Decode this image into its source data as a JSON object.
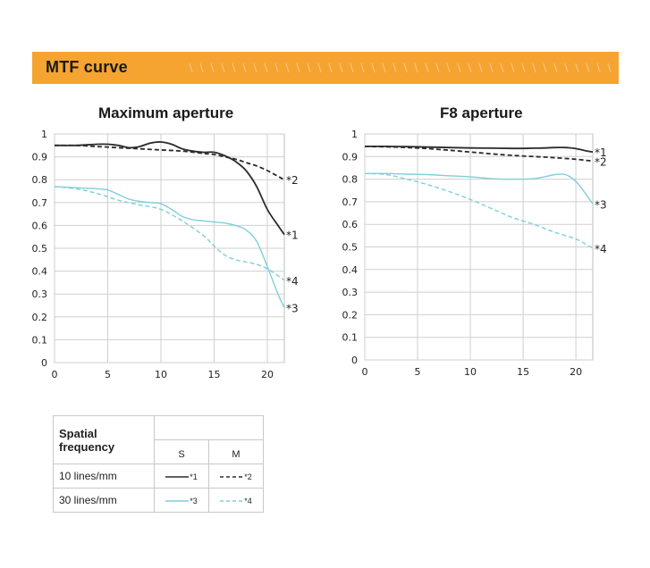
{
  "banner": {
    "title": "MTF curve"
  },
  "colors": {
    "banner": "#f5a431",
    "sagittal_dark": "#2b2b2b",
    "cyan": "#7fcfd8",
    "grid": "#cfcfcf"
  },
  "chart_data": [
    {
      "type": "line",
      "title": "Maximum aperture",
      "xlabel": "",
      "ylabel": "",
      "xlim": [
        0,
        21.6
      ],
      "ylim": [
        0,
        1
      ],
      "xticks": [
        "0",
        "5",
        "10",
        "15",
        "20"
      ],
      "yticks": [
        "0",
        "0.1",
        "0.2",
        "0.3",
        "0.4",
        "0.5",
        "0.6",
        "0.7",
        "0.8",
        "0.9",
        "1"
      ],
      "grid": true,
      "series": [
        {
          "name": "*1",
          "color": "#2b2b2b",
          "dash": false,
          "x": [
            0,
            2,
            4,
            5,
            6,
            7,
            8,
            9,
            10,
            11,
            12,
            13,
            14,
            15,
            16,
            17,
            18,
            19,
            20,
            21,
            21.6
          ],
          "y": [
            0.95,
            0.95,
            0.955,
            0.955,
            0.95,
            0.94,
            0.945,
            0.96,
            0.965,
            0.955,
            0.935,
            0.925,
            0.92,
            0.92,
            0.905,
            0.88,
            0.84,
            0.77,
            0.67,
            0.6,
            0.56
          ]
        },
        {
          "name": "*2",
          "color": "#2b2b2b",
          "dash": true,
          "x": [
            0,
            2,
            4,
            6,
            8,
            10,
            12,
            14,
            15,
            16,
            17,
            18,
            19,
            20,
            21,
            21.6
          ],
          "y": [
            0.95,
            0.95,
            0.945,
            0.94,
            0.935,
            0.93,
            0.925,
            0.915,
            0.91,
            0.9,
            0.89,
            0.875,
            0.86,
            0.84,
            0.815,
            0.8
          ]
        },
        {
          "name": "*3",
          "color": "#7fcfd8",
          "dash": false,
          "x": [
            0,
            2,
            4,
            5,
            6,
            7,
            8,
            9,
            10,
            11,
            12,
            13,
            14,
            15,
            16,
            17,
            18,
            19,
            20,
            21,
            21.6
          ],
          "y": [
            0.77,
            0.765,
            0.76,
            0.755,
            0.735,
            0.715,
            0.705,
            0.7,
            0.695,
            0.67,
            0.64,
            0.625,
            0.62,
            0.615,
            0.61,
            0.6,
            0.58,
            0.53,
            0.42,
            0.3,
            0.24
          ]
        },
        {
          "name": "*4",
          "color": "#7fcfd8",
          "dash": true,
          "x": [
            0,
            2,
            4,
            6,
            8,
            10,
            12,
            14,
            15,
            16,
            17,
            18,
            19,
            20,
            21,
            21.6
          ],
          "y": [
            0.77,
            0.76,
            0.74,
            0.71,
            0.69,
            0.67,
            0.62,
            0.555,
            0.51,
            0.47,
            0.45,
            0.44,
            0.43,
            0.41,
            0.38,
            0.36
          ]
        }
      ]
    },
    {
      "type": "line",
      "title": "F8 aperture",
      "xlabel": "",
      "ylabel": "",
      "xlim": [
        0,
        21.6
      ],
      "ylim": [
        0,
        1
      ],
      "xticks": [
        "0",
        "5",
        "10",
        "15",
        "20"
      ],
      "yticks": [
        "0",
        "0.1",
        "0.2",
        "0.3",
        "0.4",
        "0.5",
        "0.6",
        "0.7",
        "0.8",
        "0.9",
        "1"
      ],
      "grid": true,
      "series": [
        {
          "name": "*1",
          "color": "#2b2b2b",
          "dash": false,
          "x": [
            0,
            2,
            4,
            6,
            8,
            10,
            12,
            14,
            15,
            16,
            17,
            18,
            19,
            20,
            21,
            21.6
          ],
          "y": [
            0.945,
            0.945,
            0.944,
            0.942,
            0.94,
            0.938,
            0.937,
            0.936,
            0.936,
            0.937,
            0.938,
            0.94,
            0.94,
            0.935,
            0.925,
            0.92
          ]
        },
        {
          "name": "*2",
          "color": "#2b2b2b",
          "dash": true,
          "x": [
            0,
            2,
            4,
            6,
            8,
            10,
            12,
            14,
            16,
            18,
            20,
            21,
            21.6
          ],
          "y": [
            0.945,
            0.943,
            0.94,
            0.935,
            0.928,
            0.92,
            0.912,
            0.905,
            0.9,
            0.895,
            0.888,
            0.883,
            0.88
          ]
        },
        {
          "name": "*3",
          "color": "#7fcfd8",
          "dash": false,
          "x": [
            0,
            2,
            4,
            6,
            8,
            10,
            12,
            13,
            14,
            15,
            16,
            17,
            18,
            19,
            20,
            21,
            21.6
          ],
          "y": [
            0.825,
            0.825,
            0.822,
            0.82,
            0.815,
            0.81,
            0.802,
            0.8,
            0.8,
            0.8,
            0.802,
            0.81,
            0.82,
            0.82,
            0.79,
            0.73,
            0.69
          ]
        },
        {
          "name": "*4",
          "color": "#7fcfd8",
          "dash": true,
          "x": [
            0,
            2,
            4,
            6,
            8,
            10,
            12,
            14,
            16,
            18,
            20,
            21,
            21.6
          ],
          "y": [
            0.825,
            0.82,
            0.8,
            0.775,
            0.745,
            0.71,
            0.67,
            0.63,
            0.6,
            0.565,
            0.535,
            0.51,
            0.495
          ]
        }
      ]
    }
  ],
  "legend": {
    "header": "Spatial frequency",
    "col_s": "S",
    "col_m": "M",
    "rows": [
      {
        "label": "10 lines/mm",
        "s_tag": "*1",
        "m_tag": "*2"
      },
      {
        "label": "30 lines/mm",
        "s_tag": "*3",
        "m_tag": "*4"
      }
    ]
  }
}
